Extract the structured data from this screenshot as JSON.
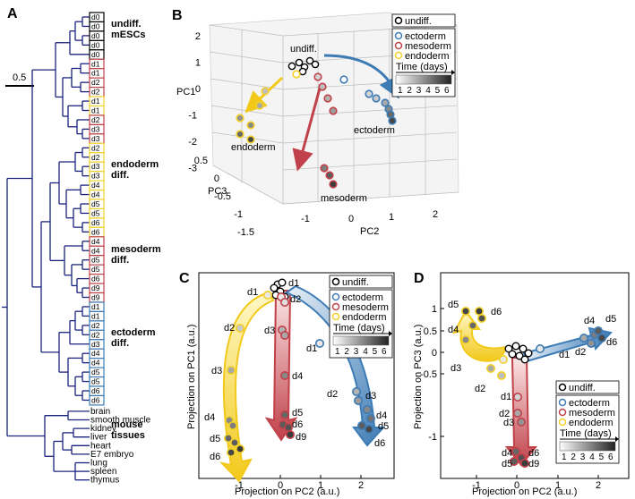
{
  "panels": {
    "A": {
      "letter": "A",
      "scale_label": "0.5",
      "leaves": [
        {
          "label": "d0",
          "type": "undiff"
        },
        {
          "label": "d0",
          "type": "undiff"
        },
        {
          "label": "d0",
          "type": "undiff"
        },
        {
          "label": "d0",
          "type": "undiff"
        },
        {
          "label": "d0",
          "type": "undiff"
        },
        {
          "label": "d1",
          "type": "meso"
        },
        {
          "label": "d1",
          "type": "meso"
        },
        {
          "label": "d2",
          "type": "meso"
        },
        {
          "label": "d2",
          "type": "meso"
        },
        {
          "label": "d1",
          "type": "endo"
        },
        {
          "label": "d1",
          "type": "endo"
        },
        {
          "label": "d2",
          "type": "meso"
        },
        {
          "label": "d3",
          "type": "meso"
        },
        {
          "label": "d3",
          "type": "meso"
        },
        {
          "label": "d2",
          "type": "endo"
        },
        {
          "label": "d2",
          "type": "endo"
        },
        {
          "label": "d3",
          "type": "endo"
        },
        {
          "label": "d3",
          "type": "endo"
        },
        {
          "label": "d4",
          "type": "endo"
        },
        {
          "label": "d4",
          "type": "endo"
        },
        {
          "label": "d5",
          "type": "endo"
        },
        {
          "label": "d5",
          "type": "endo"
        },
        {
          "label": "d6",
          "type": "endo"
        },
        {
          "label": "d6",
          "type": "endo"
        },
        {
          "label": "d4",
          "type": "meso"
        },
        {
          "label": "d4",
          "type": "meso"
        },
        {
          "label": "d5",
          "type": "meso"
        },
        {
          "label": "d5",
          "type": "meso"
        },
        {
          "label": "d6",
          "type": "meso"
        },
        {
          "label": "d9",
          "type": "meso"
        },
        {
          "label": "d9",
          "type": "meso"
        },
        {
          "label": "d1",
          "type": "ecto"
        },
        {
          "label": "d1",
          "type": "ecto"
        },
        {
          "label": "d2",
          "type": "ecto"
        },
        {
          "label": "d2",
          "type": "ecto"
        },
        {
          "label": "d3",
          "type": "ecto"
        },
        {
          "label": "d4",
          "type": "ecto"
        },
        {
          "label": "d4",
          "type": "ecto"
        },
        {
          "label": "d5",
          "type": "ecto"
        },
        {
          "label": "d5",
          "type": "ecto"
        },
        {
          "label": "d6",
          "type": "ecto"
        },
        {
          "label": "d6",
          "type": "ecto"
        }
      ],
      "tissues": [
        "brain",
        "smooth muscle",
        "kidney",
        "liver",
        "heart",
        "E7 embryo",
        "lung",
        "spleen",
        "thymus"
      ],
      "groups": [
        {
          "lines": [
            "undiff.",
            "mESCs"
          ]
        },
        {
          "lines": [
            "endoderm",
            "diff."
          ]
        },
        {
          "lines": [
            "mesoderm",
            "diff."
          ]
        },
        {
          "lines": [
            "ectoderm",
            "diff."
          ]
        },
        {
          "lines": [
            "mouse",
            "tissues"
          ]
        }
      ]
    },
    "B": {
      "letter": "B",
      "axis_pc1": "PC1",
      "axis_pc2": "PC2",
      "axis_pc3": "PC3",
      "pc1_ticks": [
        "2",
        "1",
        "0",
        "-1",
        "-2",
        "-3"
      ],
      "pc3_ticks": [
        "0.5",
        "0",
        "-0.5",
        "-1",
        "-1.5"
      ],
      "pc2_ticks": [
        "-1",
        "0",
        "1",
        "2"
      ],
      "labels": {
        "undiff": "undiff.",
        "endoderm": "endoderm",
        "ectoderm": "ectoderm",
        "mesoderm": "mesoderm"
      }
    },
    "C": {
      "letter": "C",
      "xlabel": "Projection on PC2 (a.u.)",
      "ylabel": "Projection on PC1 (a.u.)",
      "xticks": [
        "-1",
        "0",
        "1",
        "2"
      ],
      "point_labels": {
        "endo": [
          "d1",
          "d2",
          "d3",
          "d4",
          "d5",
          "d6"
        ],
        "meso": [
          "d1",
          "d2",
          "d3",
          "d4",
          "d5",
          "d6",
          "d9"
        ],
        "ecto": [
          "d1",
          "d2",
          "d3",
          "d4",
          "d5",
          "d6"
        ]
      }
    },
    "D": {
      "letter": "D",
      "xlabel": "Projection on PC2 (a.u.)",
      "ylabel": "Projection on PC3 (a.u.)",
      "xticks": [
        "-1",
        "0",
        "1",
        "2"
      ],
      "yticks": [
        "1",
        "0.5",
        "0",
        "-0.5",
        "-1"
      ],
      "point_labels": {
        "endo": [
          "d5",
          "d6",
          "d4",
          "d3",
          "d2"
        ],
        "ecto": [
          "d4",
          "d5",
          "d2",
          "d6",
          "d1"
        ],
        "meso": [
          "d1",
          "d2",
          "d3",
          "d4",
          "d6",
          "d5",
          "d9"
        ]
      }
    }
  },
  "legend": {
    "undiff": "undiff.",
    "ecto": "ectoderm",
    "meso": "mesoderm",
    "endo": "endoderm",
    "time_title": "Time (days)",
    "time_ticks": [
      "1",
      "2",
      "3",
      "4",
      "5",
      "6"
    ]
  },
  "colors": {
    "ecto": "#3d7bb5",
    "meso": "#c0414a",
    "endo": "#f2d12a",
    "undiff": "#000000",
    "tree": "#1a237e"
  }
}
